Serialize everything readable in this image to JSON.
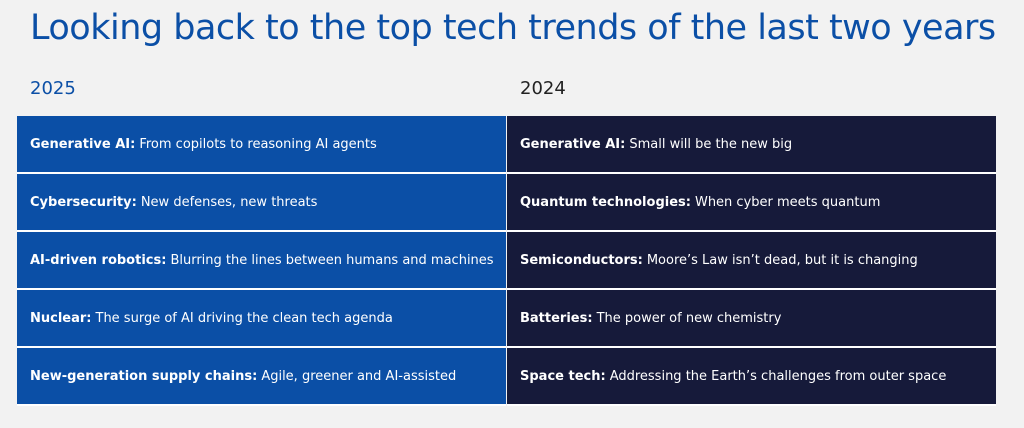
{
  "title": "Looking back to the top tech trends of the last two years",
  "columns": [
    {
      "year": "2025",
      "items": [
        {
          "label": "Generative AI:",
          "text": "From copilots to reasoning AI agents"
        },
        {
          "label": "Cybersecurity:",
          "text": "New defenses, new threats"
        },
        {
          "label": "AI-driven robotics:",
          "text": "Blurring the lines between humans and machines"
        },
        {
          "label": "Nuclear:",
          "text": "The surge of AI driving the clean tech agenda"
        },
        {
          "label": "New-generation supply chains:",
          "text": "Agile, greener and AI-assisted"
        }
      ]
    },
    {
      "year": "2024",
      "items": [
        {
          "label": "Generative AI:",
          "text": "Small will be the new big"
        },
        {
          "label": "Quantum technologies:",
          "text": "When cyber meets quantum"
        },
        {
          "label": "Semiconductors:",
          "text": "Moore’s Law isn’t dead, but it is changing"
        },
        {
          "label": "Batteries:",
          "text": "The power of new chemistry"
        },
        {
          "label": "Space tech:",
          "text": "Addressing the Earth’s challenges from outer space"
        }
      ]
    }
  ]
}
